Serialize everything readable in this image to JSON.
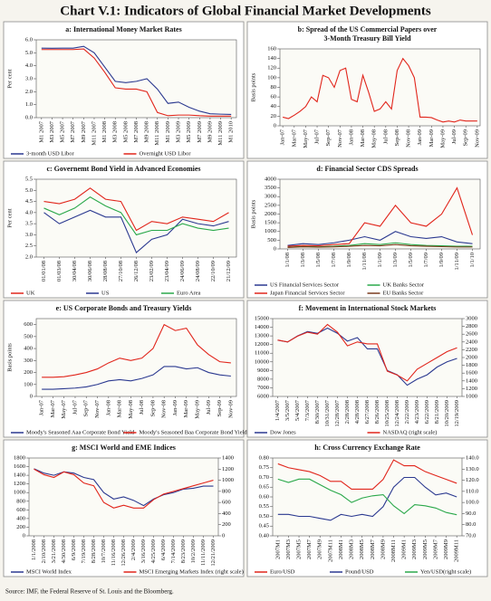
{
  "title": "Chart V.1: Indicators of Global Financial Market Developments",
  "source": "Source: IMF, the Federal Reserve of St. Louis and the Bloomberg.",
  "chart_data": [
    {
      "type": "line",
      "title": "a: International Money Market Rates",
      "ylabel": "Per cent",
      "categories": [
        "M1 2007",
        "M3 2007",
        "M5 2007",
        "M7 2007",
        "M9 2007",
        "M11 2007",
        "M1 2008",
        "M3 2008",
        "M5 2008",
        "M7 2008",
        "M9 2008",
        "M11 2008",
        "M1 2009",
        "M3 2009",
        "M5 2009",
        "M7 2009",
        "M9 2009",
        "M11 2009",
        "M1 2010"
      ],
      "ylim": [
        0,
        6
      ],
      "yticks": [
        {
          "value": 0,
          "label": "0.0"
        },
        {
          "value": 1,
          "label": "1.0"
        },
        {
          "value": 2,
          "label": "2.0"
        },
        {
          "value": 3,
          "label": "3.0"
        },
        {
          "value": 4,
          "label": "4.0"
        },
        {
          "value": 5,
          "label": "5.0"
        },
        {
          "value": 6,
          "label": "6.0"
        }
      ],
      "series": [
        {
          "name": "3-month USD Libor",
          "color": "#2b3990",
          "values": [
            5.36,
            5.35,
            5.36,
            5.36,
            5.5,
            5.0,
            3.9,
            2.8,
            2.7,
            2.8,
            3.0,
            2.2,
            1.1,
            1.2,
            0.8,
            0.5,
            0.3,
            0.27,
            0.25
          ]
        },
        {
          "name": "Overnight USD Libor",
          "color": "#e1251b",
          "values": [
            5.25,
            5.25,
            5.25,
            5.25,
            5.3,
            4.6,
            3.5,
            2.3,
            2.2,
            2.2,
            2.0,
            0.4,
            0.15,
            0.2,
            0.2,
            0.15,
            0.12,
            0.12,
            0.12
          ]
        }
      ]
    },
    {
      "type": "line",
      "title": [
        "b: Spread of the US Commercial Papers over",
        "3-Month Treasury Bill  Yield"
      ],
      "ylabel": "Basis points",
      "categories": [
        "Jan-07",
        null,
        "Mar-07",
        null,
        "May-07",
        null,
        "Jul-07",
        null,
        "Sep-07",
        null,
        "Nov-07",
        null,
        "Jan-08",
        null,
        "Mar-08",
        null,
        "May-08",
        null,
        "Jul-08",
        null,
        "Sep-08",
        null,
        "Nov-08",
        null,
        "Jan-09",
        null,
        "Mar-09",
        null,
        "May-09",
        null,
        "Jul-09",
        null,
        "Sep-09",
        null,
        "Nov-09"
      ],
      "ylim": [
        0,
        160
      ],
      "yticks": [
        0,
        20,
        40,
        60,
        80,
        100,
        120,
        140,
        160
      ],
      "series": [
        {
          "name": null,
          "color": "#e1251b",
          "values": [
            18,
            15,
            22,
            30,
            40,
            60,
            50,
            105,
            100,
            80,
            115,
            120,
            55,
            50,
            105,
            70,
            30,
            35,
            50,
            35,
            115,
            140,
            125,
            100,
            18,
            18,
            17,
            12,
            8,
            10,
            8,
            12,
            10,
            10,
            10
          ]
        }
      ]
    },
    {
      "type": "line",
      "title": "c: Governemt Bond Yield in Advanced Economies",
      "ylabel": "Per cent",
      "categories": [
        "01/01/08",
        "01/03/08",
        "30/04/08",
        "30/06/08",
        "28/08/08",
        "27/10/08",
        "26/12/08",
        "23/02/09",
        "23/04/09",
        "24/06/09",
        "24/08/09",
        "22/10/09",
        "21/12/09"
      ],
      "ylim": [
        2,
        5.5
      ],
      "yticks": [
        {
          "value": 2,
          "label": "2.0"
        },
        2.5,
        {
          "value": 3,
          "label": "3.0"
        },
        3.5,
        {
          "value": 4,
          "label": "4.0"
        },
        4.5,
        {
          "value": 5,
          "label": "5.0"
        },
        5.5
      ],
      "series": [
        {
          "name": "UK",
          "color": "#e1251b",
          "values": [
            4.5,
            4.4,
            4.6,
            5.1,
            4.6,
            4.5,
            3.2,
            3.6,
            3.5,
            3.8,
            3.7,
            3.6,
            4.0
          ]
        },
        {
          "name": "US",
          "color": "#2b3990",
          "values": [
            4.0,
            3.5,
            3.8,
            4.1,
            3.8,
            3.8,
            2.2,
            2.8,
            3.0,
            3.7,
            3.5,
            3.4,
            3.6
          ]
        },
        {
          "name": "Euro Area",
          "color": "#2aa84a",
          "values": [
            4.2,
            3.9,
            4.2,
            4.7,
            4.3,
            4.0,
            3.0,
            3.2,
            3.2,
            3.5,
            3.3,
            3.2,
            3.3
          ]
        }
      ]
    },
    {
      "type": "line",
      "title": "d: Financial Sector CDS Spreads",
      "ylabel": "Basis points",
      "categories": [
        "1/1/08",
        "1/3/08",
        "1/5/08",
        "1/7/08",
        "1/9/08",
        "1/11/08",
        "1/1/09",
        "1/3/09",
        "1/5/09",
        "1/7/09",
        "1/9/09",
        "1/11/09",
        "1/1/10"
      ],
      "ylim": [
        0,
        4000
      ],
      "yticks": [
        0,
        500,
        1000,
        1500,
        2000,
        2500,
        3000,
        3500,
        4000
      ],
      "series": [
        {
          "name": "US Financial Services Sector",
          "color": "#2b3990",
          "values": [
            200,
            300,
            250,
            350,
            500,
            700,
            500,
            1000,
            700,
            600,
            700,
            400,
            300
          ]
        },
        {
          "name": "UK Banks Sector",
          "color": "#2aa84a",
          "values": [
            100,
            150,
            120,
            150,
            200,
            300,
            250,
            350,
            250,
            200,
            180,
            150,
            150
          ]
        },
        {
          "name": "Japan Financial Services Sector",
          "color": "#e1251b",
          "values": [
            150,
            200,
            180,
            250,
            300,
            1500,
            1300,
            2500,
            1500,
            1300,
            2000,
            3500,
            800
          ]
        },
        {
          "name": "EU Banks Sector",
          "color": "#7a3b1e",
          "values": [
            80,
            120,
            100,
            120,
            150,
            200,
            180,
            250,
            180,
            150,
            130,
            110,
            110
          ]
        }
      ]
    },
    {
      "type": "line",
      "title": "e: US Corporate Bonds and Treasury Yields",
      "ylabel": "Basis points",
      "categories": [
        "Jan-07",
        "Mar-07",
        "May-07",
        "Jul-07",
        "Sep-07",
        "Nov-07",
        "Jan-08",
        "Mar-08",
        "May-08",
        "Jul-08",
        "Sep-08",
        "Nov-08",
        "Jan-09",
        "Mar-09",
        "May-09",
        "Jul-09",
        "Sep-09",
        "Nov-09"
      ],
      "ylim": [
        0,
        650
      ],
      "yticks": [
        0,
        100,
        200,
        300,
        400,
        500,
        600
      ],
      "series": [
        {
          "name": "Moody's Seasoned Aaa Corporate Bond Yield",
          "color": "#2b3990",
          "values": [
            60,
            60,
            65,
            70,
            80,
            100,
            130,
            140,
            130,
            150,
            180,
            250,
            250,
            230,
            240,
            200,
            180,
            170
          ]
        },
        {
          "name": "Moody's Seasoned Baa Corporate Bond Yield",
          "color": "#e1251b",
          "values": [
            160,
            160,
            165,
            180,
            200,
            230,
            280,
            320,
            300,
            320,
            400,
            600,
            550,
            570,
            430,
            350,
            290,
            280
          ]
        }
      ]
    },
    {
      "type": "line",
      "title": "f: Movement in International Stock Markets",
      "categories": [
        "1/4/2007",
        "3/5/2007",
        "5/4/2007",
        "7/3/2007",
        "8/30/2007",
        "10/31/2007",
        "12/28/2007",
        "2/28/2008",
        "4/28/2008",
        "6/27/2008",
        "8/26/2008",
        "10/25/2008",
        "12/24/2008",
        "2/22/2009",
        "4/23/2009",
        "6/22/2009",
        "8/21/2009",
        "10/20/2009",
        "12/19/2009"
      ],
      "ylim": [
        6000,
        15000
      ],
      "yticks": [
        6000,
        7000,
        8000,
        9000,
        10000,
        11000,
        12000,
        13000,
        14000,
        15000
      ],
      "y2lim": [
        1000,
        3000
      ],
      "y2ticks": [
        1000,
        1200,
        1400,
        1600,
        1800,
        2000,
        2200,
        2400,
        2600,
        2800,
        3000
      ],
      "series": [
        {
          "name": "Dow Jones",
          "color": "#2b3990",
          "values": [
            12500,
            12300,
            13000,
            13500,
            13300,
            13900,
            13300,
            12400,
            12800,
            11500,
            11500,
            9000,
            8500,
            7300,
            8000,
            8500,
            9400,
            10000,
            10400
          ]
        },
        {
          "name": "NASDAQ  (right scale)",
          "color": "#e1251b",
          "axis": "y2",
          "values": [
            2450,
            2400,
            2550,
            2650,
            2600,
            2850,
            2650,
            2300,
            2400,
            2350,
            2350,
            1650,
            1550,
            1400,
            1700,
            1850,
            2000,
            2150,
            2250
          ]
        }
      ]
    },
    {
      "type": "line",
      "title": "g: MSCI World and EME Indices",
      "categories": [
        "1/1/2008",
        "2/10/2008",
        "3/21/2008",
        "4/30/2008",
        "6/9/2008",
        "7/19/2008",
        "8/28/2008",
        "10/7/2008",
        "11/16/2008",
        "12/26/2008",
        "2/4/2009",
        "3/16/2009",
        "4/25/2009",
        "6/4/2009",
        "7/14/2009",
        "8/23/2009",
        "10/2/2009",
        "11/11/2009",
        "12/21/2009"
      ],
      "ylim": [
        0,
        1800
      ],
      "yticks": [
        0,
        200,
        400,
        600,
        800,
        1000,
        1200,
        1400,
        1600,
        1800
      ],
      "y2lim": [
        0,
        1400
      ],
      "y2ticks": [
        0,
        200,
        400,
        600,
        800,
        1000,
        1200,
        1400
      ],
      "series": [
        {
          "name": "MSCI World Index",
          "color": "#2b3990",
          "values": [
            1550,
            1450,
            1400,
            1480,
            1450,
            1350,
            1300,
            1000,
            850,
            900,
            820,
            700,
            850,
            950,
            1000,
            1080,
            1100,
            1150,
            1150
          ]
        },
        {
          "name": "MSCI Emerging Markets Index (right scale)",
          "color": "#e1251b",
          "axis": "y2",
          "values": [
            1200,
            1100,
            1050,
            1150,
            1100,
            950,
            900,
            600,
            500,
            550,
            500,
            500,
            650,
            750,
            800,
            850,
            900,
            950,
            1000
          ]
        }
      ]
    },
    {
      "type": "line",
      "title": "h: Cross Currency Exchange Rate",
      "categories": [
        "2007M1",
        "2007M3",
        "2007M5",
        "2007M7",
        "2007M9",
        "2007M11",
        "2008M1",
        "2008M3",
        "2008M5",
        "2008M7",
        "2008M9",
        "2008M11",
        "2009M1",
        "2009M3",
        "2009M5",
        "2009M7",
        "2009M9",
        "2009M11"
      ],
      "ylim": [
        0.4,
        0.8
      ],
      "yticks": [
        {
          "value": 0.4,
          "label": "0.40"
        },
        0.45,
        {
          "value": 0.5,
          "label": "0.50"
        },
        0.55,
        {
          "value": 0.6,
          "label": "0.60"
        },
        0.65,
        {
          "value": 0.7,
          "label": "0.70"
        },
        0.75,
        {
          "value": 0.8,
          "label": "0.80"
        }
      ],
      "y2lim": [
        70,
        140
      ],
      "y2ticks": [
        {
          "value": 70,
          "label": "70.0"
        },
        {
          "value": 80,
          "label": "80.0"
        },
        {
          "value": 90,
          "label": "90.0"
        },
        {
          "value": 100,
          "label": "100.0"
        },
        {
          "value": 110,
          "label": "110.0"
        },
        {
          "value": 120,
          "label": "120.0"
        },
        {
          "value": 130,
          "label": "130.0"
        },
        {
          "value": 140,
          "label": "140.0"
        }
      ],
      "series": [
        {
          "name": "Euro/USD",
          "color": "#e1251b",
          "values": [
            0.77,
            0.75,
            0.74,
            0.73,
            0.71,
            0.68,
            0.68,
            0.64,
            0.64,
            0.64,
            0.69,
            0.79,
            0.76,
            0.76,
            0.73,
            0.71,
            0.69,
            0.67
          ]
        },
        {
          "name": "Pound/USD",
          "color": "#2b3990",
          "values": [
            0.51,
            0.51,
            0.5,
            0.5,
            0.49,
            0.48,
            0.51,
            0.5,
            0.51,
            0.5,
            0.55,
            0.65,
            0.7,
            0.7,
            0.65,
            0.61,
            0.62,
            0.6
          ]
        },
        {
          "name": "Yen/USD(right scale)",
          "color": "#2aa84a",
          "axis": "y2",
          "values": [
            121,
            118,
            121,
            121,
            116,
            111,
            107,
            100,
            104,
            106,
            107,
            97,
            90,
            98,
            97,
            95,
            91,
            89
          ]
        }
      ]
    }
  ]
}
